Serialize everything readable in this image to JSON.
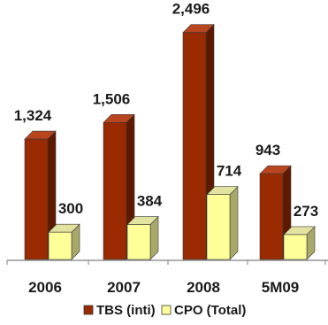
{
  "chart_data": {
    "type": "bar",
    "variant": "3d-clustered-column",
    "categories": [
      "2006",
      "2007",
      "2008",
      "5M09"
    ],
    "series": [
      {
        "name": "TBS (inti)",
        "values": [
          1324,
          1506,
          2496,
          943
        ],
        "labels": [
          "1,324",
          "1,506",
          "2,496",
          "943"
        ],
        "color": "#9a2a00",
        "side_color": "#5e1a00",
        "top_color": "#b9451f"
      },
      {
        "name": "CPO (Total)",
        "values": [
          300,
          384,
          714,
          273
        ],
        "labels": [
          "300",
          "384",
          "714",
          "273"
        ],
        "color": "#ffff99",
        "side_color": "#a8a86a",
        "top_color": "#e3e3a0"
      }
    ],
    "ylim": [
      0,
      2500
    ],
    "grid": false,
    "legend_position": "bottom",
    "axis_color": "#7f7f7f"
  }
}
